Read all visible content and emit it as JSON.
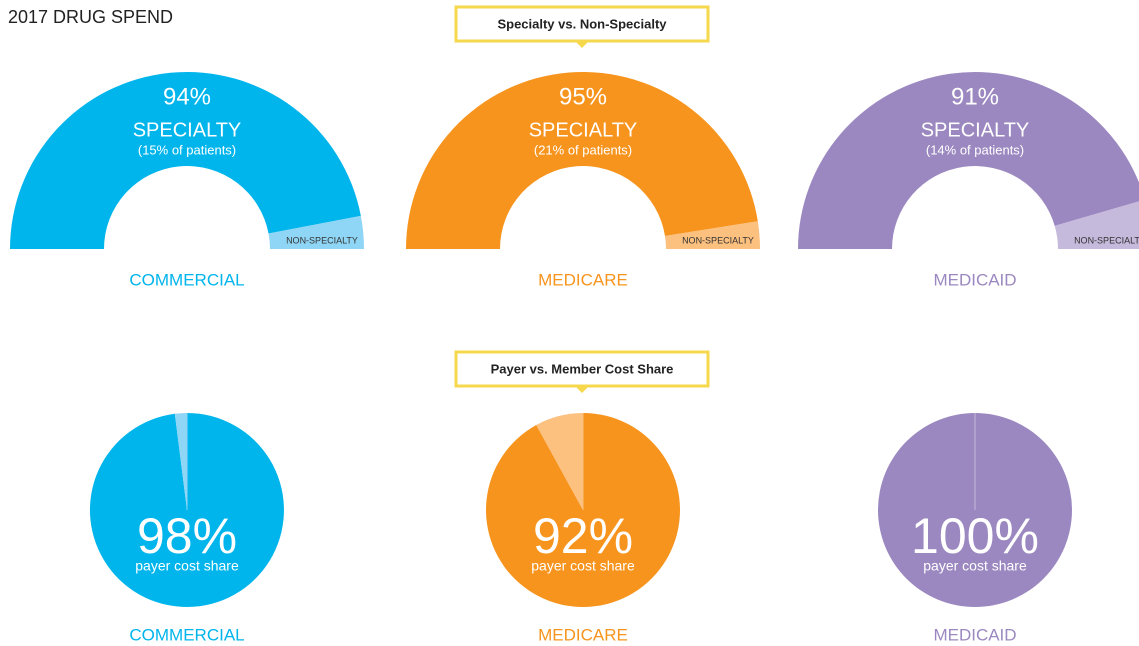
{
  "title": "2017 DRUG SPEND",
  "sections": [
    "Specialty vs. Non-Specialty",
    "Payer vs. Member Cost Share"
  ],
  "chart_data": [
    {
      "type": "half-donut",
      "title": "COMMERCIAL",
      "categories": [
        "SPECIALTY",
        "NON-SPECIALTY"
      ],
      "values": [
        94,
        6
      ],
      "value_labels": [
        "94%",
        null
      ],
      "annotation": "(15% of patients)",
      "colors": [
        "#00b5ec",
        "#8fd6f6"
      ]
    },
    {
      "type": "half-donut",
      "title": "MEDICARE",
      "categories": [
        "SPECIALTY",
        "NON-SPECIALTY"
      ],
      "values": [
        95,
        5
      ],
      "value_labels": [
        "95%",
        null
      ],
      "annotation": "(21% of patients)",
      "colors": [
        "#f7941d",
        "#fcc07f"
      ]
    },
    {
      "type": "half-donut",
      "title": "MEDICAID",
      "categories": [
        "SPECIALTY",
        "NON-SPECIALTY"
      ],
      "values": [
        91,
        9
      ],
      "value_labels": [
        "91%",
        null
      ],
      "annotation": "(14% of patients)",
      "colors": [
        "#9b88c0",
        "#c5b9dc"
      ]
    },
    {
      "type": "pie",
      "title": "COMMERCIAL",
      "label": "payer cost share",
      "values": [
        98,
        2
      ],
      "value_labels": [
        "98%",
        null
      ],
      "colors": [
        "#00b5ec",
        "#8fd6f6"
      ]
    },
    {
      "type": "pie",
      "title": "MEDICARE",
      "label": "payer cost share",
      "values": [
        92,
        8
      ],
      "value_labels": [
        "92%",
        null
      ],
      "colors": [
        "#f7941d",
        "#fcc07f"
      ]
    },
    {
      "type": "pie",
      "title": "MEDICAID",
      "label": "payer cost share",
      "values": [
        100,
        0
      ],
      "value_labels": [
        "100%",
        null
      ],
      "colors": [
        "#9b88c0",
        "#c5b9dc"
      ]
    }
  ]
}
